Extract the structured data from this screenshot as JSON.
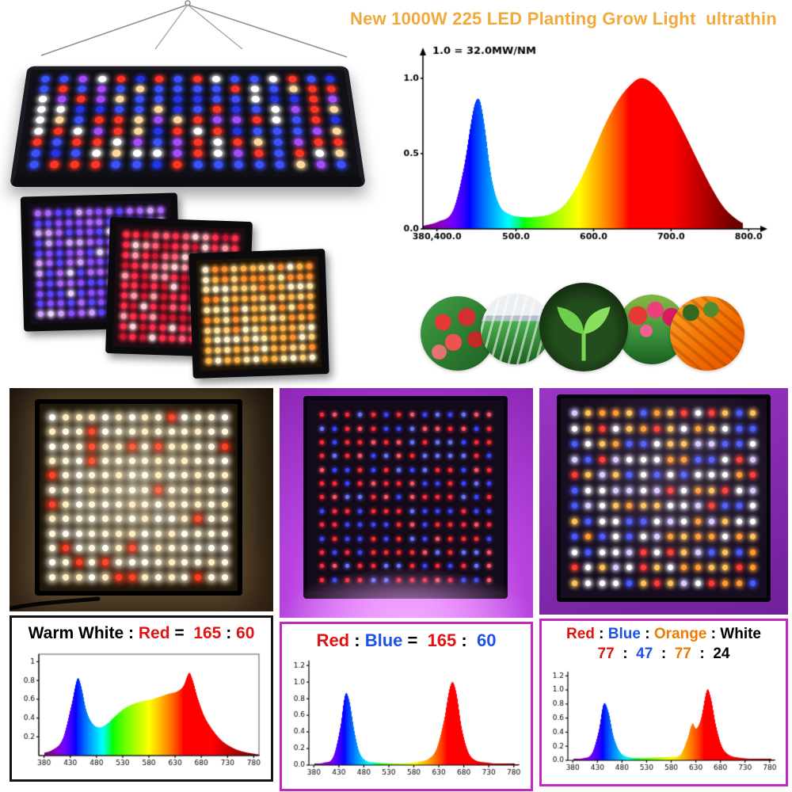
{
  "title": {
    "text": "New 1000W 225 LED Planting Grow Light  ultrathin",
    "color": "#f2a93b"
  },
  "plant_photos": [
    "strawberries",
    "greenhouse",
    "sprout",
    "tulips",
    "carrots"
  ],
  "led_colors": {
    "hanging": {
      "colors": [
        "#3c52ff",
        "#2433e8",
        "#ff3526",
        "#ffffff",
        "#ffd9a0",
        "#a44dff"
      ],
      "weights": [
        0.3,
        0.15,
        0.2,
        0.17,
        0.1,
        0.08
      ]
    },
    "purple": {
      "colors": [
        "#8a4dff",
        "#aa66ff",
        "#5b43ff",
        "#d0a0ff",
        "#e8d4ff"
      ],
      "weights": [
        0.3,
        0.25,
        0.2,
        0.15,
        0.1
      ]
    },
    "red": {
      "colors": [
        "#ff2d4a",
        "#ff5d73",
        "#cf1730",
        "#ff9aa6",
        "#ffd0d6"
      ],
      "weights": [
        0.3,
        0.25,
        0.2,
        0.15,
        0.1
      ]
    },
    "warm": {
      "colors": [
        "#ffcf7a",
        "#ffb347",
        "#fff1c9",
        "#ff8f2e",
        "#ffe6a0"
      ],
      "weights": [
        0.26,
        0.24,
        0.2,
        0.15,
        0.15
      ]
    },
    "photo1": {
      "colors": [
        "#fff6dc",
        "#ffedc2",
        "#ff3a20",
        "#fffdf2"
      ],
      "weights": [
        0.4,
        0.24,
        0.14,
        0.22
      ]
    },
    "photo2": {
      "colors": [
        "#ff2a33",
        "#3946ff",
        "#ff5560",
        "#6a74ff"
      ],
      "weights": [
        0.35,
        0.3,
        0.2,
        0.15
      ]
    },
    "photo3": {
      "colors": [
        "#ffffff",
        "#ffc257",
        "#ff9a2e",
        "#ff3a30",
        "#4a5aff",
        "#d8ccff"
      ],
      "weights": [
        0.22,
        0.22,
        0.14,
        0.15,
        0.14,
        0.13
      ]
    }
  },
  "bottom_sections": [
    {
      "name": "warm-white-red-ratio",
      "box_border": "#151515",
      "label_parts": [
        {
          "t": "Warm White",
          "c": "#000000"
        },
        {
          "t": " : ",
          "c": "#000000"
        },
        {
          "t": "Red",
          "c": "#e01212"
        },
        {
          "t": " =  ",
          "c": "#000000"
        },
        {
          "t": "165",
          "c": "#e01212"
        },
        {
          "t": " : ",
          "c": "#000000"
        },
        {
          "t": "60",
          "c": "#e01212"
        }
      ]
    },
    {
      "name": "red-blue-ratio",
      "box_border": "#c428c4",
      "label_parts": [
        {
          "t": "Red",
          "c": "#e01212"
        },
        {
          "t": " : ",
          "c": "#000000"
        },
        {
          "t": "Blue",
          "c": "#1d52e8"
        },
        {
          "t": " =  ",
          "c": "#000000"
        },
        {
          "t": "165",
          "c": "#e01212"
        },
        {
          "t": " :  ",
          "c": "#000000"
        },
        {
          "t": "60",
          "c": "#1d52e8"
        }
      ]
    },
    {
      "name": "red-blue-orange-white-ratio",
      "box_border": "#c428c4",
      "label_parts": [
        {
          "t": "Red",
          "c": "#e01212"
        },
        {
          "t": " : ",
          "c": "#000000"
        },
        {
          "t": "Blue",
          "c": "#1d52e8"
        },
        {
          "t": " : ",
          "c": "#000000"
        },
        {
          "t": "Orange",
          "c": "#ef7a00"
        },
        {
          "t": " : ",
          "c": "#000000"
        },
        {
          "t": "White",
          "c": "#000000"
        }
      ],
      "label_parts2": [
        {
          "t": "77",
          "c": "#e01212"
        },
        {
          "t": "  :  ",
          "c": "#000000"
        },
        {
          "t": "47",
          "c": "#1d52e8"
        },
        {
          "t": "  :  ",
          "c": "#000000"
        },
        {
          "t": "77",
          "c": "#ef7a00"
        },
        {
          "t": "  :  ",
          "c": "#000000"
        },
        {
          "t": "24",
          "c": "#000000"
        }
      ]
    }
  ],
  "chart_data": [
    {
      "id": "main-spectrum",
      "type": "area",
      "title": "1.0 = 32.0MW/NM",
      "xlabel": "",
      "ylabel": "",
      "fill": "wavelength",
      "arrows": true,
      "x_range": [
        380,
        812
      ],
      "y_range": [
        0,
        1.12
      ],
      "x_ticks": [
        {
          "x": 398,
          "label": "380,400.0"
        },
        {
          "x": 500,
          "label": "500.0"
        },
        {
          "x": 600,
          "label": "600.0"
        },
        {
          "x": 700,
          "label": "700.0"
        },
        {
          "x": 800,
          "label": "800.0"
        }
      ],
      "y_ticks": [
        {
          "y": 0,
          "label": "0.0"
        },
        {
          "y": 0.5,
          "label": "0.5"
        },
        {
          "y": 1,
          "label": "1.0"
        }
      ],
      "points": [
        [
          380,
          0.02
        ],
        [
          400,
          0.05
        ],
        [
          418,
          0.12
        ],
        [
          432,
          0.4
        ],
        [
          445,
          0.8
        ],
        [
          452,
          0.86
        ],
        [
          458,
          0.72
        ],
        [
          468,
          0.34
        ],
        [
          478,
          0.16
        ],
        [
          490,
          0.1
        ],
        [
          505,
          0.08
        ],
        [
          525,
          0.08
        ],
        [
          545,
          0.1
        ],
        [
          562,
          0.16
        ],
        [
          580,
          0.3
        ],
        [
          598,
          0.5
        ],
        [
          615,
          0.7
        ],
        [
          632,
          0.86
        ],
        [
          648,
          0.96
        ],
        [
          660,
          1.0
        ],
        [
          672,
          0.98
        ],
        [
          688,
          0.9
        ],
        [
          702,
          0.78
        ],
        [
          718,
          0.62
        ],
        [
          735,
          0.44
        ],
        [
          752,
          0.27
        ],
        [
          768,
          0.14
        ],
        [
          785,
          0.06
        ],
        [
          800,
          0.02
        ],
        [
          810,
          0.01
        ]
      ]
    },
    {
      "id": "warm-white-spectrum",
      "type": "area",
      "title": "",
      "fill": "wavelength",
      "plot_border": true,
      "x_range": [
        370,
        790
      ],
      "y_range": [
        0,
        1.08
      ],
      "x_ticks": [
        {
          "x": 380,
          "label": "380"
        },
        {
          "x": 430,
          "label": "430"
        },
        {
          "x": 480,
          "label": "480"
        },
        {
          "x": 530,
          "label": "530"
        },
        {
          "x": 580,
          "label": "580"
        },
        {
          "x": 630,
          "label": "630"
        },
        {
          "x": 680,
          "label": "680"
        },
        {
          "x": 730,
          "label": "730"
        },
        {
          "x": 780,
          "label": "780"
        }
      ],
      "y_ticks": [
        {
          "y": 0.2,
          "label": "0.2"
        },
        {
          "y": 0.4,
          "label": "0.4"
        },
        {
          "y": 0.6,
          "label": "0.6"
        },
        {
          "y": 0.8,
          "label": "0.8"
        },
        {
          "y": 1,
          "label": "1"
        }
      ],
      "points": [
        [
          370,
          0.02
        ],
        [
          395,
          0.06
        ],
        [
          415,
          0.18
        ],
        [
          432,
          0.55
        ],
        [
          443,
          0.82
        ],
        [
          450,
          0.74
        ],
        [
          460,
          0.48
        ],
        [
          472,
          0.34
        ],
        [
          485,
          0.3
        ],
        [
          500,
          0.34
        ],
        [
          515,
          0.42
        ],
        [
          532,
          0.5
        ],
        [
          550,
          0.55
        ],
        [
          568,
          0.58
        ],
        [
          585,
          0.6
        ],
        [
          602,
          0.63
        ],
        [
          618,
          0.66
        ],
        [
          632,
          0.68
        ],
        [
          645,
          0.74
        ],
        [
          656,
          0.88
        ],
        [
          663,
          0.8
        ],
        [
          672,
          0.62
        ],
        [
          685,
          0.42
        ],
        [
          700,
          0.28
        ],
        [
          718,
          0.16
        ],
        [
          740,
          0.08
        ],
        [
          760,
          0.04
        ],
        [
          790,
          0.01
        ]
      ]
    },
    {
      "id": "red-blue-spectrum",
      "type": "area",
      "title": "",
      "fill": "wavelength",
      "x_range": [
        370,
        790
      ],
      "y_range": [
        0,
        1.26
      ],
      "x_ticks": [
        {
          "x": 380,
          "label": "380"
        },
        {
          "x": 430,
          "label": "430"
        },
        {
          "x": 480,
          "label": "480"
        },
        {
          "x": 530,
          "label": "530"
        },
        {
          "x": 580,
          "label": "580"
        },
        {
          "x": 630,
          "label": "630"
        },
        {
          "x": 680,
          "label": "680"
        },
        {
          "x": 730,
          "label": "730"
        },
        {
          "x": 780,
          "label": "780"
        }
      ],
      "y_ticks": [
        {
          "y": 0,
          "label": "0.0"
        },
        {
          "y": 0.2,
          "label": "0.2"
        },
        {
          "y": 0.4,
          "label": "0.4"
        },
        {
          "y": 0.6,
          "label": "0.6"
        },
        {
          "y": 0.8,
          "label": "0.8"
        },
        {
          "y": 1,
          "label": "1.0"
        },
        {
          "y": 1.2,
          "label": "1.2"
        }
      ],
      "points": [
        [
          370,
          0.01
        ],
        [
          400,
          0.03
        ],
        [
          418,
          0.1
        ],
        [
          432,
          0.45
        ],
        [
          442,
          0.85
        ],
        [
          450,
          0.78
        ],
        [
          460,
          0.42
        ],
        [
          470,
          0.16
        ],
        [
          482,
          0.06
        ],
        [
          500,
          0.03
        ],
        [
          530,
          0.02
        ],
        [
          560,
          0.02
        ],
        [
          590,
          0.04
        ],
        [
          610,
          0.08
        ],
        [
          625,
          0.2
        ],
        [
          640,
          0.55
        ],
        [
          650,
          0.9
        ],
        [
          657,
          1.0
        ],
        [
          665,
          0.85
        ],
        [
          675,
          0.45
        ],
        [
          688,
          0.16
        ],
        [
          702,
          0.06
        ],
        [
          725,
          0.03
        ],
        [
          760,
          0.01
        ],
        [
          790,
          0.01
        ]
      ]
    },
    {
      "id": "red-blue-orange-white-spectrum",
      "type": "area",
      "title": "",
      "fill": "wavelength",
      "x_range": [
        370,
        790
      ],
      "y_range": [
        0,
        1.26
      ],
      "x_ticks": [
        {
          "x": 380,
          "label": "380"
        },
        {
          "x": 430,
          "label": "430"
        },
        {
          "x": 480,
          "label": "480"
        },
        {
          "x": 530,
          "label": "530"
        },
        {
          "x": 580,
          "label": "580"
        },
        {
          "x": 630,
          "label": "630"
        },
        {
          "x": 680,
          "label": "680"
        },
        {
          "x": 730,
          "label": "730"
        },
        {
          "x": 780,
          "label": "780"
        }
      ],
      "y_ticks": [
        {
          "y": 0,
          "label": "0.0"
        },
        {
          "y": 0.2,
          "label": "0.2"
        },
        {
          "y": 0.4,
          "label": "0.4"
        },
        {
          "y": 0.6,
          "label": "0.6"
        },
        {
          "y": 0.8,
          "label": "0.8"
        },
        {
          "y": 1,
          "label": "1.0"
        },
        {
          "y": 1.2,
          "label": "1.2"
        }
      ],
      "points": [
        [
          370,
          0.01
        ],
        [
          400,
          0.03
        ],
        [
          418,
          0.1
        ],
        [
          432,
          0.42
        ],
        [
          442,
          0.8
        ],
        [
          452,
          0.68
        ],
        [
          462,
          0.34
        ],
        [
          475,
          0.12
        ],
        [
          490,
          0.05
        ],
        [
          515,
          0.03
        ],
        [
          545,
          0.04
        ],
        [
          575,
          0.05
        ],
        [
          598,
          0.08
        ],
        [
          612,
          0.3
        ],
        [
          622,
          0.52
        ],
        [
          630,
          0.45
        ],
        [
          640,
          0.6
        ],
        [
          652,
          1.0
        ],
        [
          660,
          0.88
        ],
        [
          670,
          0.5
        ],
        [
          682,
          0.2
        ],
        [
          696,
          0.08
        ],
        [
          715,
          0.04
        ],
        [
          745,
          0.02
        ],
        [
          790,
          0.01
        ]
      ]
    }
  ]
}
